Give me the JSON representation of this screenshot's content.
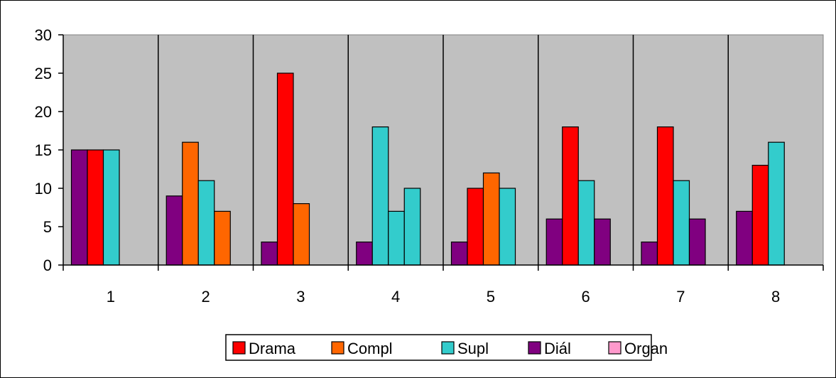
{
  "chart_data": {
    "type": "bar",
    "categories": [
      "1",
      "2",
      "3",
      "4",
      "5",
      "6",
      "7",
      "8"
    ],
    "ylim": [
      0,
      30
    ],
    "yticks": [
      0,
      5,
      10,
      15,
      20,
      25,
      30
    ],
    "grid": "vertical category separators",
    "plot_background": "#c0c0c0",
    "legend_position": "bottom",
    "legend": [
      {
        "name": "Drama",
        "color": "#ff0000"
      },
      {
        "name": "Compl",
        "color": "#ff6600"
      },
      {
        "name": "Supl",
        "color": "#33cccc"
      },
      {
        "name": "Diál",
        "color": "#800080"
      },
      {
        "name": "Organ",
        "color": "#ff99cc"
      }
    ],
    "groups": [
      [
        {
          "series": "Diál",
          "value": 15
        },
        {
          "series": "Drama",
          "value": 15
        },
        {
          "series": "Supl",
          "value": 15
        }
      ],
      [
        {
          "series": "Diál",
          "value": 9
        },
        {
          "series": "Compl",
          "value": 16
        },
        {
          "series": "Supl",
          "value": 11
        },
        {
          "series": "Compl",
          "value": 7
        }
      ],
      [
        {
          "series": "Diál",
          "value": 3
        },
        {
          "series": "Drama",
          "value": 25
        },
        {
          "series": "Compl",
          "value": 8
        }
      ],
      [
        {
          "series": "Diál",
          "value": 3
        },
        {
          "series": "Supl",
          "value": 18
        },
        {
          "series": "Supl",
          "value": 7
        },
        {
          "series": "Supl",
          "value": 10
        }
      ],
      [
        {
          "series": "Diál",
          "value": 3
        },
        {
          "series": "Drama",
          "value": 10
        },
        {
          "series": "Compl",
          "value": 12
        },
        {
          "series": "Supl",
          "value": 10
        }
      ],
      [
        {
          "series": "Diál",
          "value": 6
        },
        {
          "series": "Drama",
          "value": 18
        },
        {
          "series": "Supl",
          "value": 11
        },
        {
          "series": "Diál",
          "value": 6
        }
      ],
      [
        {
          "series": "Diál",
          "value": 3
        },
        {
          "series": "Drama",
          "value": 18
        },
        {
          "series": "Supl",
          "value": 11
        },
        {
          "series": "Diál",
          "value": 6
        }
      ],
      [
        {
          "series": "Diál",
          "value": 7
        },
        {
          "series": "Drama",
          "value": 13
        },
        {
          "series": "Supl",
          "value": 16
        }
      ]
    ]
  }
}
